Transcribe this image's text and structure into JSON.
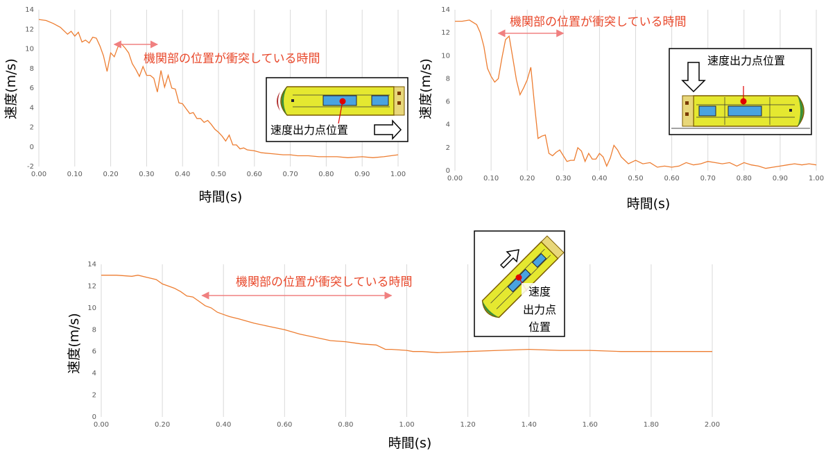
{
  "colors": {
    "series": "#ed7d31",
    "annotation": "#e8472a",
    "grid": "#d9d9d9",
    "arrow": "#f08080",
    "hull": "#e5e830"
  },
  "icons": [
    "ship-icon",
    "motion-arrow-icon",
    "velocity-point-icon"
  ],
  "chart_data": [
    {
      "type": "line",
      "xlabel": "時間(s)",
      "ylabel": "速度(m/s)",
      "xlim": [
        0,
        1.0
      ],
      "ylim": [
        -2,
        14
      ],
      "xticks": [
        "0.00",
        "0.10",
        "0.20",
        "0.30",
        "0.40",
        "0.50",
        "0.60",
        "0.70",
        "0.80",
        "0.90",
        "1.00"
      ],
      "yticks": [
        "-2",
        "0",
        "2",
        "4",
        "6",
        "8",
        "10",
        "12",
        "14"
      ],
      "grid": "vertical",
      "annotation": {
        "text": "機関部の位置が衝突している時間",
        "x_start": 0.21,
        "x_end": 0.33
      },
      "inset_label": "速度出力点位置",
      "series": [
        {
          "x": [
            0,
            0.02,
            0.04,
            0.06,
            0.08,
            0.09,
            0.1,
            0.11,
            0.12,
            0.13,
            0.14,
            0.15,
            0.16,
            0.17,
            0.18,
            0.19,
            0.2,
            0.21,
            0.22,
            0.23,
            0.24,
            0.25,
            0.26,
            0.27,
            0.28,
            0.29,
            0.3,
            0.31,
            0.32,
            0.33,
            0.34,
            0.35,
            0.36,
            0.37,
            0.38,
            0.39,
            0.4,
            0.41,
            0.42,
            0.43,
            0.44,
            0.45,
            0.46,
            0.47,
            0.48,
            0.49,
            0.5,
            0.51,
            0.52,
            0.53,
            0.54,
            0.55,
            0.56,
            0.57,
            0.58,
            0.6,
            0.62,
            0.65,
            0.68,
            0.7,
            0.72,
            0.75,
            0.78,
            0.8,
            0.83,
            0.86,
            0.9,
            0.93,
            0.96,
            1.0
          ],
          "y": [
            13.0,
            12.9,
            12.6,
            12.2,
            11.5,
            11.8,
            11.3,
            11.7,
            10.7,
            10.9,
            10.6,
            11.2,
            11.1,
            10.3,
            9.3,
            7.7,
            9.6,
            9.2,
            10.2,
            10.5,
            10.1,
            9.6,
            8.5,
            7.9,
            7.2,
            8.2,
            7.3,
            7.3,
            7.0,
            5.6,
            7.8,
            6.1,
            7.3,
            6.0,
            5.9,
            4.5,
            4.4,
            3.9,
            3.4,
            3.5,
            2.9,
            2.9,
            2.5,
            2.7,
            2.3,
            1.8,
            1.5,
            1.1,
            0.6,
            1.2,
            0.2,
            0.2,
            -0.2,
            -0.1,
            -0.3,
            -0.4,
            -0.6,
            -0.7,
            -0.8,
            -0.8,
            -0.9,
            -0.9,
            -1.0,
            -1.0,
            -1.0,
            -1.1,
            -1.0,
            -1.1,
            -1.0,
            -0.8
          ]
        }
      ]
    },
    {
      "type": "line",
      "xlabel": "時間(s)",
      "ylabel": "速度(m/s)",
      "xlim": [
        0,
        1.0
      ],
      "ylim": [
        0,
        14
      ],
      "xticks": [
        "0.00",
        "0.10",
        "0.20",
        "0.30",
        "0.40",
        "0.50",
        "0.60",
        "0.70",
        "0.80",
        "0.90",
        "1.00"
      ],
      "yticks": [
        "0",
        "2",
        "4",
        "6",
        "8",
        "10",
        "12",
        "14"
      ],
      "grid": "vertical",
      "annotation": {
        "text": "機関部の位置が衝突している時間",
        "x_start": 0.12,
        "x_end": 0.3
      },
      "inset_label": "速度出力点位置",
      "series": [
        {
          "x": [
            0,
            0.02,
            0.04,
            0.05,
            0.06,
            0.07,
            0.08,
            0.09,
            0.1,
            0.11,
            0.12,
            0.13,
            0.14,
            0.15,
            0.16,
            0.17,
            0.18,
            0.19,
            0.2,
            0.21,
            0.22,
            0.23,
            0.24,
            0.25,
            0.26,
            0.27,
            0.28,
            0.29,
            0.3,
            0.31,
            0.32,
            0.33,
            0.34,
            0.35,
            0.36,
            0.37,
            0.38,
            0.39,
            0.4,
            0.41,
            0.42,
            0.43,
            0.44,
            0.45,
            0.46,
            0.47,
            0.48,
            0.5,
            0.52,
            0.54,
            0.56,
            0.58,
            0.6,
            0.62,
            0.64,
            0.66,
            0.68,
            0.7,
            0.72,
            0.74,
            0.76,
            0.78,
            0.8,
            0.82,
            0.84,
            0.86,
            0.88,
            0.9,
            0.92,
            0.94,
            0.96,
            0.98,
            1.0
          ],
          "y": [
            13.0,
            13.0,
            13.1,
            12.9,
            12.7,
            12.0,
            10.8,
            8.9,
            8.2,
            7.7,
            8.0,
            9.8,
            11.4,
            11.7,
            9.8,
            7.9,
            6.6,
            7.2,
            7.9,
            9.0,
            5.8,
            2.8,
            3.0,
            3.1,
            1.5,
            1.3,
            1.6,
            1.8,
            1.3,
            0.8,
            0.9,
            0.9,
            2.0,
            1.7,
            0.8,
            1.5,
            1.0,
            1.0,
            1.5,
            1.2,
            0.4,
            1.1,
            2.2,
            1.8,
            1.2,
            0.9,
            0.6,
            0.9,
            0.6,
            0.7,
            0.3,
            0.4,
            0.3,
            0.4,
            0.7,
            0.5,
            0.6,
            0.8,
            0.7,
            0.6,
            0.7,
            0.4,
            0.7,
            0.5,
            0.4,
            0.2,
            0.3,
            0.4,
            0.5,
            0.6,
            0.5,
            0.6,
            0.5
          ]
        }
      ]
    },
    {
      "type": "line",
      "xlabel": "時間(s)",
      "ylabel": "速度(m/s)",
      "xlim": [
        0,
        2.0
      ],
      "ylim": [
        0,
        14
      ],
      "xticks": [
        "0.00",
        "0.20",
        "0.40",
        "0.60",
        "0.80",
        "1.00",
        "1.20",
        "1.40",
        "1.60",
        "1.80",
        "2.00"
      ],
      "yticks": [
        "0",
        "2",
        "4",
        "6",
        "8",
        "10",
        "12",
        "14"
      ],
      "grid": "vertical",
      "annotation": {
        "text": "機関部の位置が衝突している時間",
        "x_start": 0.33,
        "x_end": 0.95
      },
      "inset_label": [
        "速度",
        "出力点",
        "位置"
      ],
      "series": [
        {
          "x": [
            0,
            0.05,
            0.1,
            0.12,
            0.15,
            0.18,
            0.2,
            0.22,
            0.24,
            0.26,
            0.28,
            0.3,
            0.32,
            0.34,
            0.36,
            0.38,
            0.4,
            0.42,
            0.45,
            0.5,
            0.55,
            0.6,
            0.65,
            0.7,
            0.75,
            0.8,
            0.85,
            0.9,
            0.93,
            0.95,
            1.0,
            1.02,
            1.05,
            1.1,
            1.2,
            1.3,
            1.4,
            1.5,
            1.6,
            1.7,
            1.8,
            1.9,
            2.0
          ],
          "y": [
            13.0,
            13.0,
            12.9,
            13.0,
            12.8,
            12.6,
            12.2,
            12.0,
            11.8,
            11.5,
            11.1,
            11.0,
            10.6,
            10.2,
            10.0,
            9.6,
            9.4,
            9.2,
            9.0,
            8.6,
            8.3,
            8.0,
            7.6,
            7.3,
            7.0,
            6.9,
            6.7,
            6.6,
            6.2,
            6.2,
            6.1,
            6.0,
            6.0,
            5.9,
            6.0,
            6.1,
            6.2,
            6.1,
            6.1,
            6.0,
            6.0,
            6.0,
            6.0
          ]
        }
      ]
    }
  ]
}
